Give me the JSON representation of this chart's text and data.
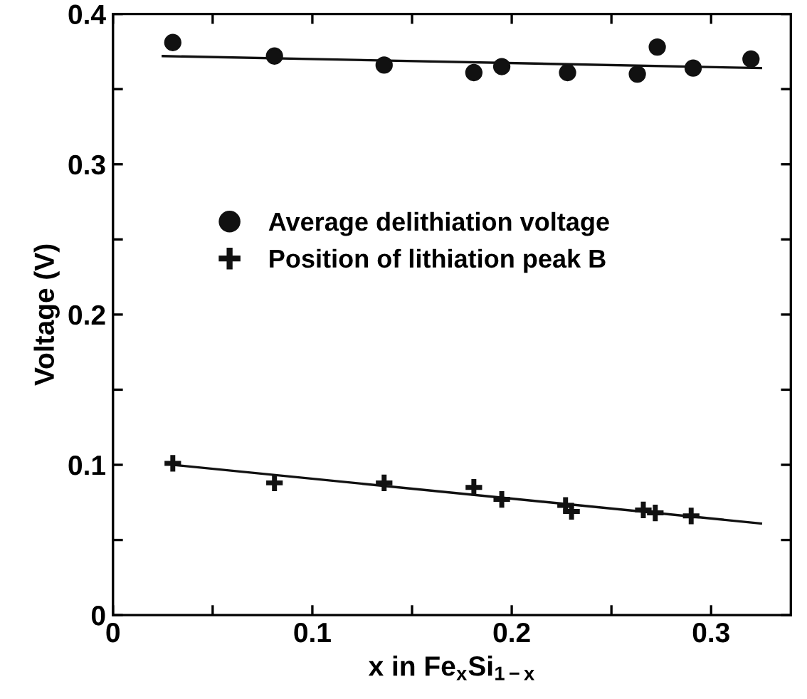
{
  "chart_data": {
    "type": "scatter",
    "xlabel": "x in Fe$_{x}$Si$_{1−x}$",
    "ylabel": "Voltage (V)",
    "xlim": [
      0,
      0.34
    ],
    "ylim": [
      0,
      0.4
    ],
    "xticks": [
      0,
      {
        "value": 0.05,
        "label": null
      },
      0.1,
      {
        "value": 0.15,
        "label": null
      },
      0.2,
      {
        "value": 0.25,
        "label": null
      },
      0.3
    ],
    "yticks": [
      0,
      {
        "value": 0.05,
        "label": null
      },
      0.1,
      {
        "value": 0.15,
        "label": null
      },
      0.2,
      {
        "value": 0.25,
        "label": null
      },
      0.3,
      {
        "value": 0.35,
        "label": null
      },
      0.4
    ],
    "grid": false,
    "legend": "left",
    "series": [
      {
        "name": "Average delithiation voltage",
        "color": "#111111",
        "marker": "circle",
        "x": [
          0.03,
          0.081,
          0.136,
          0.181,
          0.195,
          0.228,
          0.263,
          0.273,
          0.291,
          0.32
        ],
        "values": [
          0.381,
          0.372,
          0.366,
          0.361,
          0.365,
          0.361,
          0.36,
          0.378,
          0.364,
          0.37
        ]
      },
      {
        "name": "Position of lithiation peak B",
        "color": "#111111",
        "marker": "cross",
        "x": [
          0.03,
          0.081,
          0.136,
          0.181,
          0.195,
          0.227,
          0.23,
          0.266,
          0.272,
          0.29
        ],
        "values": [
          0.101,
          0.088,
          0.088,
          0.085,
          0.077,
          0.073,
          0.069,
          0.07,
          0.068,
          0.066
        ]
      },
      {
        "type": "line",
        "color": "#111111",
        "marker": "none",
        "x": [
          0.025,
          0.325
        ],
        "values": [
          0.372,
          0.364
        ]
      },
      {
        "type": "line",
        "color": "#111111",
        "marker": "none",
        "x": [
          0.03,
          0.325
        ],
        "values": [
          0.1,
          0.061
        ]
      }
    ]
  }
}
